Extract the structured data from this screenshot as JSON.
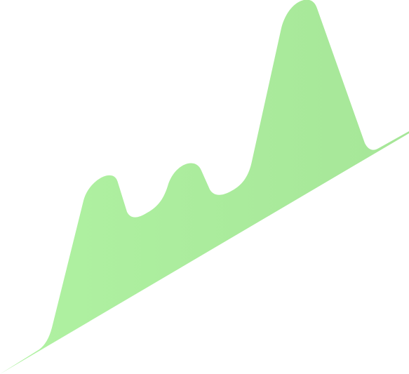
{
  "illustration": {
    "name": "green-wave-mountain-shape",
    "colors": {
      "gradient_start": "#b0f2a2",
      "gradient_end": "#a6e698"
    }
  }
}
